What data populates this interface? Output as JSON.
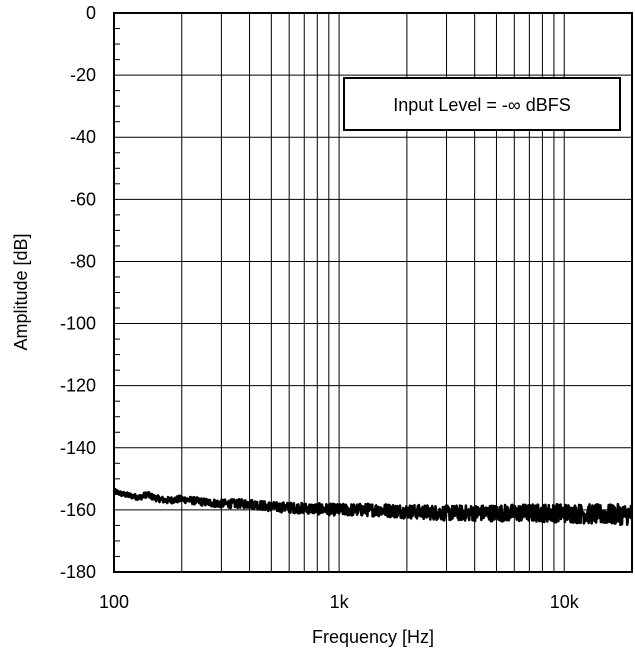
{
  "chart_data": {
    "type": "line",
    "title": "",
    "xlabel": "Frequency [Hz]",
    "ylabel": "Amplitude [dB]",
    "x_scale": "log",
    "xlim": [
      100,
      20000
    ],
    "ylim": [
      -180,
      0
    ],
    "grid": true,
    "x_tick_values": [
      100,
      1000,
      10000
    ],
    "x_tick_labels": [
      "100",
      "1k",
      "10k"
    ],
    "y_tick_values": [
      0,
      -20,
      -40,
      -60,
      -80,
      -100,
      -120,
      -140,
      -160,
      -180
    ],
    "y_tick_labels": [
      "0",
      "-20",
      "-40",
      "-60",
      "-80",
      "-100",
      "-120",
      "-140",
      "-160",
      "-180"
    ],
    "annotation": "Input Level = -∞ dBFS",
    "colors": {
      "line": "#000000",
      "grid": "#000000",
      "background": "#ffffff"
    },
    "series": [
      {
        "x": [
          100,
          110,
          120,
          130,
          140,
          150,
          170,
          200,
          250,
          300,
          400,
          500,
          700,
          1000,
          1500,
          2000,
          3000,
          5000,
          7000,
          10000,
          15000,
          20000
        ],
        "y": [
          -154,
          -155,
          -155.5,
          -156,
          -155,
          -156,
          -157,
          -156.5,
          -157.5,
          -158,
          -158,
          -159,
          -159.5,
          -160,
          -160,
          -160.5,
          -161,
          -161,
          -161,
          -161,
          -161.5,
          -161.5
        ]
      }
    ]
  }
}
